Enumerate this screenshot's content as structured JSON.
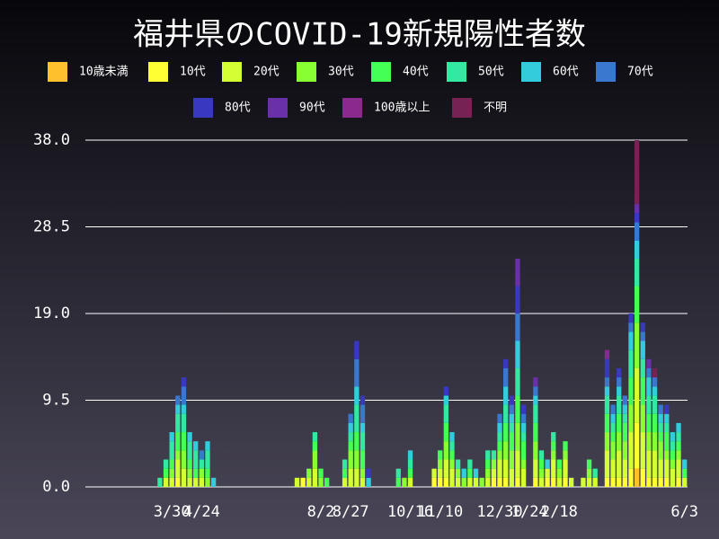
{
  "chart_data": {
    "type": "stacked_bar",
    "title": "福井県のCOVID-19新規陽性者数",
    "categories": [
      null,
      null,
      null,
      null,
      null,
      null,
      null,
      null,
      null,
      null,
      null,
      null,
      null,
      null,
      "3/30",
      null,
      null,
      null,
      null,
      "4/24",
      null,
      null,
      null,
      null,
      null,
      null,
      null,
      null,
      null,
      null,
      null,
      null,
      null,
      null,
      null,
      null,
      null,
      null,
      null,
      "8/2",
      null,
      null,
      null,
      null,
      "8/27",
      null,
      null,
      null,
      null,
      null,
      null,
      null,
      null,
      null,
      "10/16",
      null,
      null,
      null,
      null,
      "11/10",
      null,
      null,
      null,
      null,
      null,
      null,
      null,
      null,
      null,
      "12/30",
      null,
      null,
      null,
      null,
      "1/24",
      null,
      null,
      null,
      null,
      "2/18",
      null,
      null,
      null,
      null,
      null,
      null,
      null,
      null,
      null,
      null,
      null,
      null,
      null,
      null,
      null,
      null,
      null,
      null,
      null,
      null,
      "6/3"
    ],
    "series": [
      {
        "name": "10歳未満",
        "color": "#ffc02e",
        "values": [
          0,
          0,
          0,
          0,
          0,
          0,
          0,
          0,
          0,
          0,
          0,
          0,
          0,
          0,
          0,
          0,
          0,
          0,
          0,
          0,
          0,
          0,
          0,
          0,
          0,
          0,
          0,
          0,
          0,
          0,
          0,
          0,
          0,
          0,
          0,
          0,
          0,
          0,
          0,
          0,
          0,
          0,
          0,
          0,
          0,
          0,
          0,
          0,
          0,
          0,
          0,
          0,
          0,
          0,
          0,
          0,
          0,
          0,
          0,
          0,
          0,
          0,
          0,
          0,
          0,
          0,
          0,
          0,
          0,
          0,
          0,
          0,
          0,
          0,
          0,
          0,
          0,
          0,
          0,
          0,
          0,
          0,
          0,
          0,
          0,
          0,
          0,
          0,
          0,
          0,
          0,
          0,
          2,
          0,
          0,
          0,
          0,
          0,
          0,
          0,
          0
        ]
      },
      {
        "name": "10代",
        "color": "#ffff33",
        "values": [
          0,
          0,
          0,
          0,
          0,
          0,
          0,
          0,
          0,
          0,
          0,
          0,
          0,
          0,
          0,
          1,
          0,
          0,
          0,
          0,
          0,
          0,
          0,
          0,
          0,
          0,
          0,
          0,
          0,
          0,
          0,
          0,
          0,
          0,
          0,
          0,
          1,
          0,
          0,
          0,
          0,
          0,
          0,
          0,
          0,
          0,
          0,
          0,
          0,
          0,
          0,
          0,
          0,
          0,
          0,
          0,
          0,
          0,
          1,
          1,
          1,
          0,
          0,
          0,
          0,
          0,
          0,
          0,
          1,
          1,
          1,
          0,
          1,
          0,
          0,
          1,
          0,
          1,
          1,
          0,
          1,
          0,
          0,
          0,
          0,
          0,
          0,
          1,
          1,
          1,
          1,
          2,
          5,
          2,
          1,
          1,
          1,
          1,
          0,
          1,
          0
        ]
      },
      {
        "name": "20代",
        "color": "#d4ff33",
        "values": [
          0,
          0,
          0,
          0,
          0,
          0,
          0,
          0,
          0,
          0,
          0,
          0,
          0,
          1,
          1,
          2,
          2,
          1,
          1,
          1,
          0,
          0,
          0,
          0,
          0,
          0,
          0,
          0,
          0,
          0,
          0,
          0,
          0,
          0,
          0,
          1,
          0,
          1,
          2,
          0,
          0,
          0,
          0,
          1,
          2,
          2,
          1,
          0,
          0,
          0,
          0,
          0,
          0,
          0,
          1,
          0,
          0,
          0,
          1,
          1,
          2,
          2,
          1,
          0,
          1,
          1,
          0,
          1,
          1,
          2,
          2,
          2,
          3,
          2,
          0,
          2,
          1,
          1,
          2,
          1,
          2,
          1,
          0,
          1,
          1,
          1,
          0,
          3,
          2,
          3,
          2,
          4,
          6,
          4,
          3,
          3,
          2,
          2,
          2,
          2,
          1
        ]
      },
      {
        "name": "30代",
        "color": "#88ff33",
        "values": [
          0,
          0,
          0,
          0,
          0,
          0,
          0,
          0,
          0,
          0,
          0,
          0,
          0,
          0,
          1,
          1,
          2,
          1,
          0,
          1,
          1,
          0,
          0,
          0,
          0,
          0,
          0,
          0,
          0,
          0,
          0,
          0,
          0,
          0,
          0,
          0,
          0,
          1,
          2,
          1,
          0,
          0,
          0,
          0,
          2,
          2,
          1,
          0,
          0,
          0,
          0,
          0,
          0,
          1,
          0,
          0,
          0,
          0,
          0,
          1,
          2,
          1,
          1,
          1,
          0,
          0,
          1,
          1,
          1,
          1,
          2,
          2,
          3,
          1,
          0,
          2,
          1,
          0,
          1,
          1,
          1,
          0,
          0,
          0,
          1,
          0,
          0,
          2,
          2,
          2,
          2,
          3,
          5,
          3,
          2,
          2,
          2,
          1,
          1,
          1,
          0
        ]
      },
      {
        "name": "40代",
        "color": "#44ff55",
        "values": [
          0,
          0,
          0,
          0,
          0,
          0,
          0,
          0,
          0,
          0,
          0,
          0,
          0,
          1,
          1,
          2,
          2,
          1,
          1,
          0,
          1,
          0,
          0,
          0,
          0,
          0,
          0,
          0,
          0,
          0,
          0,
          0,
          0,
          0,
          0,
          0,
          0,
          0,
          1,
          1,
          1,
          0,
          0,
          1,
          1,
          2,
          2,
          0,
          0,
          0,
          0,
          0,
          1,
          0,
          1,
          0,
          0,
          0,
          0,
          1,
          2,
          1,
          0,
          0,
          1,
          0,
          0,
          1,
          0,
          1,
          2,
          2,
          3,
          2,
          0,
          2,
          1,
          0,
          1,
          1,
          1,
          0,
          0,
          0,
          1,
          0,
          0,
          2,
          1,
          2,
          2,
          3,
          4,
          3,
          2,
          2,
          1,
          2,
          1,
          1,
          1
        ]
      },
      {
        "name": "50代",
        "color": "#33e8a0",
        "values": [
          0,
          0,
          0,
          0,
          0,
          0,
          0,
          0,
          0,
          0,
          0,
          0,
          1,
          1,
          2,
          2,
          2,
          2,
          2,
          1,
          2,
          0,
          0,
          0,
          0,
          0,
          0,
          0,
          0,
          0,
          0,
          0,
          0,
          0,
          0,
          0,
          0,
          0,
          1,
          0,
          0,
          0,
          0,
          1,
          1,
          3,
          2,
          0,
          0,
          0,
          0,
          0,
          1,
          0,
          1,
          0,
          0,
          0,
          0,
          0,
          2,
          1,
          1,
          0,
          1,
          0,
          0,
          1,
          1,
          1,
          2,
          1,
          3,
          1,
          0,
          2,
          1,
          0,
          1,
          0,
          0,
          0,
          0,
          0,
          0,
          1,
          0,
          2,
          1,
          2,
          1,
          3,
          3,
          2,
          2,
          2,
          1,
          1,
          1,
          1,
          0
        ]
      },
      {
        "name": "60代",
        "color": "#33ccdd",
        "values": [
          0,
          0,
          0,
          0,
          0,
          0,
          0,
          0,
          0,
          0,
          0,
          0,
          0,
          0,
          1,
          1,
          1,
          1,
          1,
          0,
          1,
          1,
          0,
          0,
          0,
          0,
          0,
          0,
          0,
          0,
          0,
          0,
          0,
          0,
          0,
          0,
          0,
          0,
          0,
          0,
          0,
          0,
          0,
          0,
          1,
          2,
          1,
          1,
          0,
          0,
          0,
          0,
          0,
          0,
          1,
          0,
          0,
          0,
          0,
          0,
          1,
          1,
          0,
          1,
          0,
          1,
          0,
          0,
          0,
          1,
          2,
          1,
          3,
          1,
          0,
          1,
          0,
          1,
          0,
          0,
          0,
          0,
          0,
          0,
          0,
          0,
          0,
          1,
          1,
          1,
          1,
          2,
          2,
          2,
          2,
          1,
          1,
          1,
          1,
          1,
          1
        ]
      },
      {
        "name": "70代",
        "color": "#3a78d0",
        "values": [
          0,
          0,
          0,
          0,
          0,
          0,
          0,
          0,
          0,
          0,
          0,
          0,
          0,
          0,
          0,
          1,
          2,
          0,
          0,
          1,
          0,
          0,
          0,
          0,
          0,
          0,
          0,
          0,
          0,
          0,
          0,
          0,
          0,
          0,
          0,
          0,
          0,
          0,
          0,
          0,
          0,
          0,
          0,
          0,
          1,
          3,
          2,
          0,
          0,
          0,
          0,
          0,
          0,
          0,
          0,
          0,
          0,
          0,
          0,
          0,
          0,
          0,
          0,
          0,
          0,
          0,
          0,
          0,
          0,
          1,
          2,
          1,
          3,
          1,
          0,
          1,
          0,
          0,
          0,
          0,
          0,
          0,
          0,
          0,
          0,
          0,
          0,
          1,
          1,
          1,
          1,
          1,
          2,
          1,
          1,
          1,
          1,
          0,
          0,
          0,
          0
        ]
      },
      {
        "name": "80代",
        "color": "#3838c0",
        "values": [
          0,
          0,
          0,
          0,
          0,
          0,
          0,
          0,
          0,
          0,
          0,
          0,
          0,
          0,
          0,
          0,
          1,
          0,
          0,
          0,
          0,
          0,
          0,
          0,
          0,
          0,
          0,
          0,
          0,
          0,
          0,
          0,
          0,
          0,
          0,
          0,
          0,
          0,
          0,
          0,
          0,
          0,
          0,
          0,
          0,
          2,
          1,
          1,
          0,
          0,
          0,
          0,
          0,
          0,
          0,
          0,
          0,
          0,
          0,
          0,
          1,
          0,
          0,
          0,
          0,
          0,
          0,
          0,
          0,
          0,
          1,
          1,
          3,
          1,
          0,
          0,
          0,
          0,
          0,
          0,
          0,
          0,
          0,
          0,
          0,
          0,
          0,
          2,
          0,
          1,
          0,
          1,
          1,
          1,
          0,
          0,
          0,
          1,
          0,
          0,
          0
        ]
      },
      {
        "name": "90代",
        "color": "#6a30aa",
        "values": [
          0,
          0,
          0,
          0,
          0,
          0,
          0,
          0,
          0,
          0,
          0,
          0,
          0,
          0,
          0,
          0,
          0,
          0,
          0,
          0,
          0,
          0,
          0,
          0,
          0,
          0,
          0,
          0,
          0,
          0,
          0,
          0,
          0,
          0,
          0,
          0,
          0,
          0,
          0,
          0,
          0,
          0,
          0,
          0,
          0,
          0,
          0,
          0,
          0,
          0,
          0,
          0,
          0,
          0,
          0,
          0,
          0,
          0,
          0,
          0,
          0,
          0,
          0,
          0,
          0,
          0,
          0,
          0,
          0,
          0,
          0,
          0,
          3,
          0,
          0,
          1,
          0,
          0,
          0,
          0,
          0,
          0,
          0,
          0,
          0,
          0,
          0,
          0,
          0,
          0,
          0,
          0,
          1,
          0,
          1,
          0,
          0,
          0,
          0,
          0,
          0
        ]
      },
      {
        "name": "100歳以上",
        "color": "#8a2a8e",
        "values": [
          0,
          0,
          0,
          0,
          0,
          0,
          0,
          0,
          0,
          0,
          0,
          0,
          0,
          0,
          0,
          0,
          0,
          0,
          0,
          0,
          0,
          0,
          0,
          0,
          0,
          0,
          0,
          0,
          0,
          0,
          0,
          0,
          0,
          0,
          0,
          0,
          0,
          0,
          0,
          0,
          0,
          0,
          0,
          0,
          0,
          0,
          0,
          0,
          0,
          0,
          0,
          0,
          0,
          0,
          0,
          0,
          0,
          0,
          0,
          0,
          0,
          0,
          0,
          0,
          0,
          0,
          0,
          0,
          0,
          0,
          0,
          0,
          0,
          0,
          0,
          0,
          0,
          0,
          0,
          0,
          0,
          0,
          0,
          0,
          0,
          0,
          0,
          1,
          0,
          0,
          0,
          0,
          0,
          0,
          0,
          0,
          0,
          0,
          0,
          0,
          0
        ]
      },
      {
        "name": "不明",
        "color": "#772255",
        "values": [
          0,
          0,
          0,
          0,
          0,
          0,
          0,
          0,
          0,
          0,
          0,
          0,
          0,
          0,
          0,
          0,
          0,
          0,
          0,
          0,
          0,
          0,
          0,
          0,
          0,
          0,
          0,
          0,
          0,
          0,
          0,
          0,
          0,
          0,
          0,
          0,
          0,
          0,
          0,
          0,
          0,
          0,
          0,
          0,
          0,
          0,
          0,
          0,
          0,
          0,
          0,
          0,
          0,
          0,
          0,
          0,
          0,
          0,
          0,
          0,
          0,
          0,
          0,
          0,
          0,
          0,
          0,
          0,
          0,
          0,
          0,
          0,
          0,
          0,
          0,
          0,
          0,
          0,
          0,
          0,
          0,
          0,
          0,
          0,
          0,
          0,
          0,
          0,
          0,
          0,
          0,
          0,
          7,
          0,
          0,
          1,
          0,
          0,
          0,
          0,
          0
        ]
      }
    ],
    "ylim": [
      0,
      38
    ],
    "yticks": [
      {
        "value": 0,
        "label": "0.0"
      },
      9.5,
      {
        "value": 19,
        "label": "19.0"
      },
      28.5,
      {
        "value": 38,
        "label": "38.0"
      }
    ],
    "grid": true
  }
}
